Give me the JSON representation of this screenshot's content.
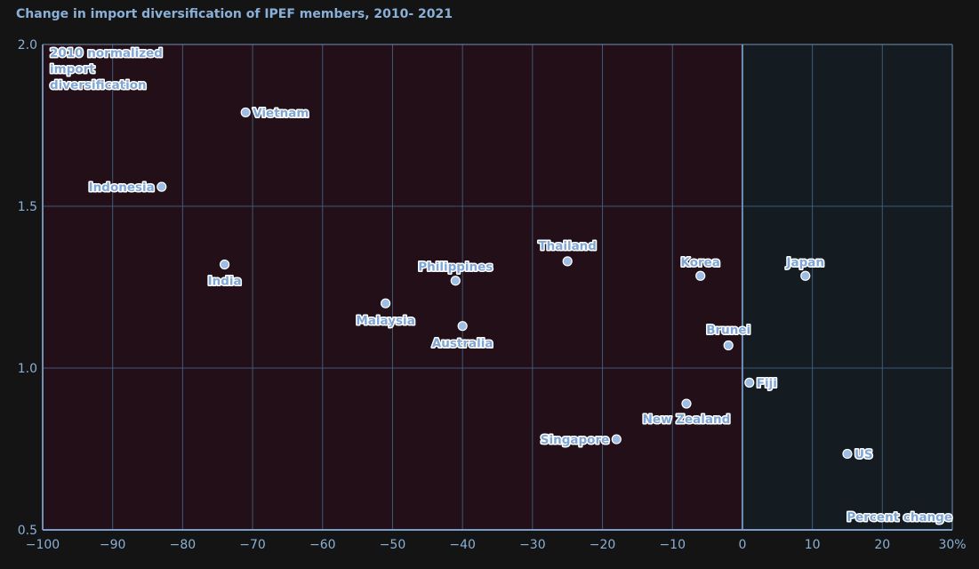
{
  "chart_data": {
    "type": "scatter",
    "title": "Change in import diversification of IPEF members, 2010- 2021",
    "ylabel": "2010 normalized import diversification",
    "xlabel": "Percent change",
    "xlim": [
      -100,
      30
    ],
    "ylim": [
      0.5,
      2.0
    ],
    "x_ticks": [
      "−100",
      "−90",
      "−80",
      "−70",
      "−60",
      "−50",
      "−40",
      "−30",
      "−20",
      "−10",
      "0",
      "10",
      "20",
      "30%"
    ],
    "y_ticks": [
      "0.5",
      "1.0",
      "1.5",
      "2.0"
    ],
    "grid": true,
    "colors": {
      "negative_region": "#230f18",
      "positive_region": "#141c22",
      "point": "#9dbde3",
      "label": "#7fa6d4",
      "grid": "#3d5a7a",
      "zero_line": "#6f8fb5"
    },
    "points": [
      {
        "name": "Vietnam",
        "x": -71,
        "y": 1.79
      },
      {
        "name": "Indonesia",
        "x": -83,
        "y": 1.56
      },
      {
        "name": "India",
        "x": -74,
        "y": 1.32
      },
      {
        "name": "Philippines",
        "x": -41,
        "y": 1.27
      },
      {
        "name": "Malaysia",
        "x": -51,
        "y": 1.2
      },
      {
        "name": "Australia",
        "x": -40,
        "y": 1.13
      },
      {
        "name": "Thailand",
        "x": -25,
        "y": 1.33
      },
      {
        "name": "Korea",
        "x": -6,
        "y": 1.285
      },
      {
        "name": "Japan",
        "x": 9,
        "y": 1.285
      },
      {
        "name": "Brunei",
        "x": -2,
        "y": 1.07
      },
      {
        "name": "Fiji",
        "x": 1,
        "y": 0.955
      },
      {
        "name": "New Zealand",
        "x": -8,
        "y": 0.89
      },
      {
        "name": "Singapore",
        "x": -18,
        "y": 0.78
      },
      {
        "name": "US",
        "x": 15,
        "y": 0.735
      }
    ]
  }
}
